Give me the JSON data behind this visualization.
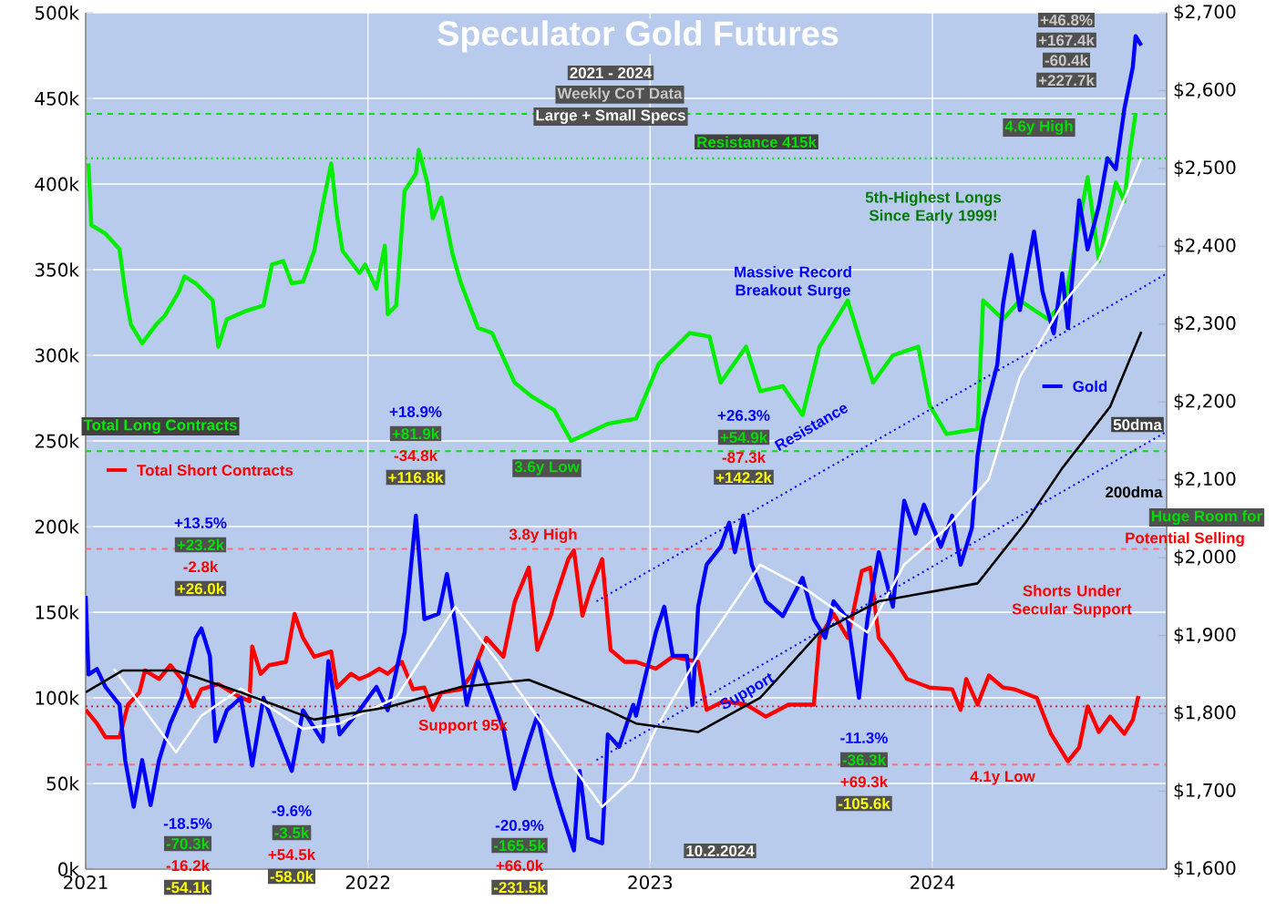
{
  "chart_data": {
    "type": "line",
    "title": "Speculator Gold Futures",
    "subtitle": "2021 - 2024",
    "xlim": [
      2021,
      2024.83
    ],
    "xticks": [
      2021,
      2022,
      2023,
      2024
    ],
    "ylim": [
      0,
      500
    ],
    "yticks": [
      {
        "value": 0,
        "label": "0k"
      },
      {
        "value": 50,
        "label": "50k"
      },
      {
        "value": 100,
        "label": "100k"
      },
      {
        "value": 150,
        "label": "150k"
      },
      {
        "value": 200,
        "label": "200k"
      },
      {
        "value": 250,
        "label": "250k"
      },
      {
        "value": 300,
        "label": "300k"
      },
      {
        "value": 350,
        "label": "350k"
      },
      {
        "value": 400,
        "label": "400k"
      },
      {
        "value": 450,
        "label": "450k"
      },
      {
        "value": 500,
        "label": "500k"
      }
    ],
    "y2lim": [
      1600,
      2700
    ],
    "y2ticks": [
      {
        "value": 1600,
        "label": "$1,600"
      },
      {
        "value": 1700,
        "label": "$1,700"
      },
      {
        "value": 1800,
        "label": "$1,800"
      },
      {
        "value": 1900,
        "label": "$1,900"
      },
      {
        "value": 2000,
        "label": "$2,000"
      },
      {
        "value": 2100,
        "label": "$2,100"
      },
      {
        "value": 2200,
        "label": "$2,200"
      },
      {
        "value": 2300,
        "label": "$2,300"
      },
      {
        "value": 2400,
        "label": "$2,400"
      },
      {
        "value": 2500,
        "label": "$2,500"
      },
      {
        "value": 2600,
        "label": "$2,600"
      },
      {
        "value": 2700,
        "label": "$2,700"
      }
    ],
    "grid": true,
    "legend": "left",
    "series": [
      {
        "name": "Total Long Contracts",
        "color": "#00ee00",
        "x": [
          2021.01,
          2021.02,
          2021.07,
          2021.12,
          2021.14,
          2021.16,
          2021.2,
          2021.25,
          2021.28,
          2021.33,
          2021.35,
          2021.39,
          2021.45,
          2021.47,
          2021.5,
          2021.57,
          2021.63,
          2021.66,
          2021.7,
          2021.73,
          2021.77,
          2021.81,
          2021.84,
          2021.87,
          2021.89,
          2021.91,
          2021.97,
          2021.99,
          2022.03,
          2022.06,
          2022.07,
          2022.1,
          2022.13,
          2022.17,
          2022.18,
          2022.21,
          2022.23,
          2022.26,
          2022.3,
          2022.33,
          2022.39,
          2022.44,
          2022.52,
          2022.58,
          2022.66,
          2022.72,
          2022.85,
          2022.95,
          2023.03,
          2023.14,
          2023.21,
          2023.25,
          2023.34,
          2023.39,
          2023.47,
          2023.54,
          2023.6,
          2023.7,
          2023.79,
          2023.86,
          2023.95,
          2023.99,
          2024.05,
          2024.16,
          2024.18,
          2024.25,
          2024.31,
          2024.41,
          2024.47,
          2024.55,
          2024.59,
          2024.65,
          2024.68,
          2024.7,
          2024.72
        ],
        "values": [
          412,
          376,
          371,
          362,
          337,
          318,
          307,
          318,
          323,
          337,
          346,
          342,
          332,
          305,
          321,
          326,
          329,
          353,
          355,
          342,
          343,
          361,
          388,
          412,
          382,
          361,
          348,
          353,
          339,
          364,
          324,
          329,
          396,
          406,
          420,
          401,
          380,
          392,
          359,
          342,
          316,
          313,
          284,
          276,
          268,
          250,
          260,
          263,
          295,
          313,
          311,
          284,
          305,
          279,
          282,
          265,
          305,
          332,
          284,
          300,
          305,
          271,
          254,
          257,
          332,
          321,
          332,
          321,
          332,
          404,
          355,
          401,
          390,
          419,
          441
        ]
      },
      {
        "name": "Total Short Contracts",
        "color": "#ff0000",
        "x": [
          2021.0,
          2021.04,
          2021.07,
          2021.12,
          2021.15,
          2021.19,
          2021.21,
          2021.26,
          2021.3,
          2021.34,
          2021.38,
          2021.41,
          2021.47,
          2021.54,
          2021.58,
          2021.59,
          2021.62,
          2021.65,
          2021.71,
          2021.74,
          2021.77,
          2021.81,
          2021.87,
          2021.89,
          2021.94,
          2021.97,
          2022.0,
          2022.04,
          2022.07,
          2022.12,
          2022.16,
          2022.2,
          2022.23,
          2022.26,
          2022.33,
          2022.37,
          2022.42,
          2022.48,
          2022.52,
          2022.57,
          2022.6,
          2022.65,
          2022.66,
          2022.71,
          2022.73,
          2022.76,
          2022.79,
          2022.83,
          2022.86,
          2022.91,
          2022.95,
          2023.02,
          2023.08,
          2023.17,
          2023.2,
          2023.26,
          2023.34,
          2023.41,
          2023.49,
          2023.58,
          2023.6,
          2023.65,
          2023.7,
          2023.75,
          2023.78,
          2023.81,
          2023.86,
          2023.91,
          2023.99,
          2024.07,
          2024.1,
          2024.12,
          2024.16,
          2024.2,
          2024.25,
          2024.29,
          2024.37,
          2024.42,
          2024.48,
          2024.52,
          2024.55,
          2024.59,
          2024.63,
          2024.68,
          2024.71,
          2024.73
        ],
        "values": [
          93,
          85,
          77,
          77,
          96,
          103,
          116,
          111,
          119,
          111,
          95,
          105,
          108,
          101,
          98,
          130,
          114,
          119,
          121,
          149,
          135,
          124,
          127,
          106,
          114,
          111,
          113,
          117,
          114,
          121,
          105,
          106,
          93,
          103,
          105,
          114,
          135,
          124,
          156,
          176,
          128,
          149,
          156,
          181,
          186,
          148,
          164,
          181,
          128,
          121,
          121,
          117,
          124,
          121,
          93,
          98,
          96,
          89,
          96,
          96,
          135,
          149,
          135,
          174,
          176,
          135,
          124,
          111,
          106,
          105,
          93,
          111,
          96,
          113,
          106,
          105,
          100,
          79,
          63,
          71,
          95,
          80,
          89,
          79,
          87,
          101
        ]
      },
      {
        "name": "Gold",
        "color": "#0000ff",
        "axis": "y2",
        "x": [
          2021.0,
          2021.01,
          2021.04,
          2021.07,
          2021.12,
          2021.14,
          2021.17,
          2021.2,
          2021.23,
          2021.26,
          2021.3,
          2021.34,
          2021.39,
          2021.41,
          2021.44,
          2021.46,
          2021.5,
          2021.55,
          2021.59,
          2021.63,
          2021.68,
          2021.73,
          2021.77,
          2021.84,
          2021.86,
          2021.9,
          2021.97,
          2022.03,
          2022.07,
          2022.13,
          2022.17,
          2022.2,
          2022.25,
          2022.28,
          2022.31,
          2022.35,
          2022.39,
          2022.44,
          2022.48,
          2022.52,
          2022.57,
          2022.6,
          2022.65,
          2022.68,
          2022.73,
          2022.75,
          2022.78,
          2022.83,
          2022.85,
          2022.89,
          2022.94,
          2022.95,
          2023.02,
          2023.05,
          2023.08,
          2023.13,
          2023.15,
          2023.17,
          2023.2,
          2023.25,
          2023.28,
          2023.3,
          2023.33,
          2023.36,
          2023.41,
          2023.47,
          2023.54,
          2023.58,
          2023.62,
          2023.65,
          2023.7,
          2023.74,
          2023.77,
          2023.81,
          2023.86,
          2023.9,
          2023.94,
          2023.97,
          2024.03,
          2024.07,
          2024.1,
          2024.14,
          2024.16,
          2024.18,
          2024.23,
          2024.25,
          2024.28,
          2024.31,
          2024.36,
          2024.39,
          2024.43,
          2024.46,
          2024.48,
          2024.52,
          2024.55,
          2024.59,
          2024.62,
          2024.65,
          2024.68,
          2024.71,
          2024.72,
          2024.74
        ],
        "values": [
          1951,
          1850,
          1857,
          1834,
          1811,
          1740,
          1680,
          1740,
          1682,
          1740,
          1787,
          1820,
          1897,
          1909,
          1874,
          1764,
          1804,
          1820,
          1733,
          1820,
          1773,
          1726,
          1804,
          1764,
          1867,
          1773,
          1804,
          1834,
          1804,
          1904,
          2054,
          1921,
          1928,
          1979,
          1914,
          1811,
          1867,
          1820,
          1780,
          1703,
          1764,
          1797,
          1717,
          1680,
          1624,
          1726,
          1640,
          1633,
          1773,
          1757,
          1811,
          1797,
          1904,
          1937,
          1874,
          1874,
          1811,
          1937,
          1991,
          2014,
          2045,
          2007,
          2054,
          1991,
          1944,
          1925,
          1974,
          1921,
          1897,
          1944,
          1921,
          1820,
          1921,
          2007,
          1937,
          2073,
          2031,
          2068,
          2014,
          2054,
          1991,
          2038,
          2131,
          2178,
          2248,
          2325,
          2389,
          2318,
          2419,
          2342,
          2288,
          2365,
          2295,
          2459,
          2396,
          2452,
          2513,
          2499,
          2576,
          2630,
          2670,
          2658
        ]
      },
      {
        "name": "50dma",
        "color": "#ffffff",
        "axis": "y2",
        "x": [
          2021.1,
          2021.32,
          2021.41,
          2021.55,
          2021.77,
          2021.9,
          2022.1,
          2022.31,
          2022.46,
          2022.63,
          2022.83,
          2022.94,
          2023.02,
          2023.17,
          2023.39,
          2023.55,
          2023.77,
          2023.9,
          2024.05,
          2024.2,
          2024.31,
          2024.46,
          2024.59,
          2024.74
        ],
        "values": [
          1857,
          1750,
          1797,
          1832,
          1780,
          1787,
          1820,
          1937,
          1867,
          1780,
          1680,
          1717,
          1780,
          1874,
          1991,
          1960,
          1904,
          1991,
          2038,
          2101,
          2232,
          2325,
          2382,
          2513
        ]
      },
      {
        "name": "200dma",
        "color": "#000000",
        "axis": "y2",
        "x": [
          2021.0,
          2021.13,
          2021.32,
          2021.55,
          2021.81,
          2022.07,
          2022.33,
          2022.57,
          2022.85,
          2022.95,
          2023.17,
          2023.39,
          2023.6,
          2023.81,
          2024.16,
          2024.33,
          2024.46,
          2024.63,
          2024.74
        ],
        "values": [
          1827,
          1855,
          1855,
          1827,
          1792,
          1808,
          1834,
          1843,
          1804,
          1787,
          1776,
          1820,
          1904,
          1944,
          1967,
          2045,
          2115,
          2194,
          2290
        ]
      },
      {
        "name": "Resistance",
        "color": "#0000ff",
        "axis": "y2",
        "line_style": "dotted",
        "x": [
          2022.81,
          2024.83
        ],
        "values": [
          1944,
          2365
        ]
      },
      {
        "name": "Support",
        "color": "#0000ff",
        "axis": "y2",
        "line_style": "dotted",
        "x": [
          2022.81,
          2024.83
        ],
        "values": [
          1740,
          2162
        ]
      }
    ],
    "ref_lines": [
      {
        "axis": "y",
        "value": 441,
        "color": "#00e000",
        "line_style": "dashed"
      },
      {
        "axis": "y",
        "value": 415,
        "color": "#00e000",
        "line_style": "dotted",
        "label": "Resistance 415k"
      },
      {
        "axis": "y",
        "value": 244,
        "color": "#00e000",
        "line_style": "dashed"
      },
      {
        "axis": "y",
        "value": 187,
        "color": "#ff7070",
        "line_style": "dashed"
      },
      {
        "axis": "y",
        "value": 95,
        "color": "#ff0000",
        "line_style": "dotted",
        "label": "Support 95k"
      },
      {
        "axis": "y",
        "value": 61,
        "color": "#ff7070",
        "line_style": "dashed"
      }
    ],
    "annotations": [
      "Weekly CoT Data",
      "Large + Small Specs",
      "4.6y High",
      "5th-Highest Longs Since Early 1999!",
      "Massive Record Breakout Surge",
      "+46.8%",
      "+167.4k",
      "-60.4k",
      "+227.7k",
      "+18.9%",
      "+81.9k",
      "-34.8k",
      "+116.8k",
      "3.6y Low",
      "+26.3%",
      "+54.9k",
      "-87.3k",
      "+142.2k",
      "+13.5%",
      "+23.2k",
      "-2.8k",
      "+26.0k",
      "3.8y High",
      "-18.5%",
      "-70.3k",
      "-16.2k",
      "-54.1k",
      "-9.6%",
      "-3.5k",
      "+54.5k",
      "-58.0k",
      "-20.9%",
      "-165.5k",
      "+66.0k",
      "-231.5k",
      "-11.3%",
      "-36.3k",
      "+69.3k",
      "-105.6k",
      "Shorts Under Secular Support",
      "4.1y Low",
      "Huge Room for",
      "Potential Selling",
      "10.2.2024"
    ]
  }
}
